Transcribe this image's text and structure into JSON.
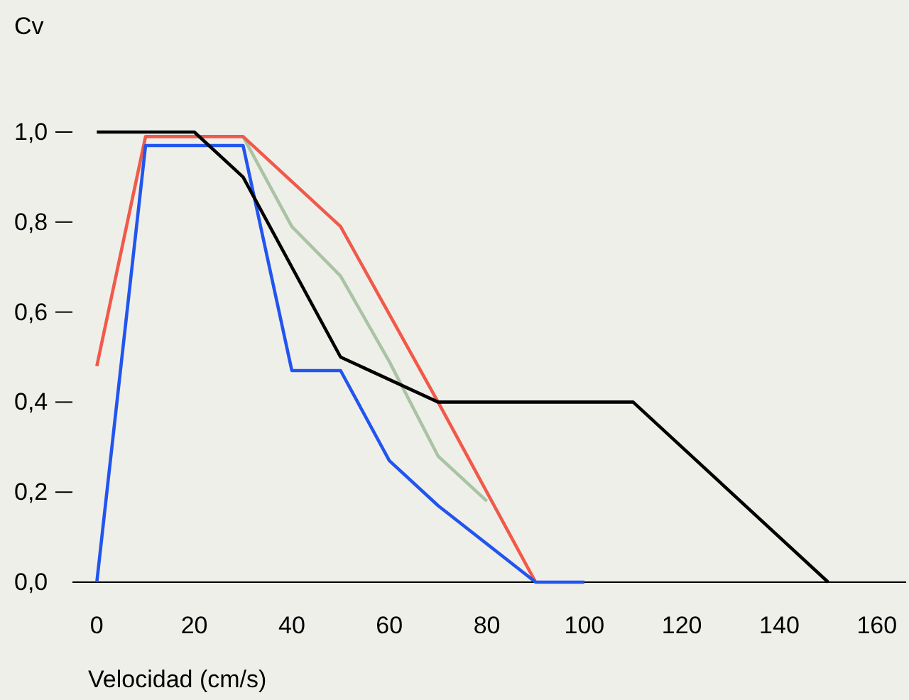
{
  "chart_data": {
    "type": "line",
    "ylabel": "Cv",
    "xlabel": "Velocidad (cm/s)",
    "xlim": [
      -5,
      166
    ],
    "xticks": [
      0,
      20,
      40,
      60,
      80,
      100,
      120,
      140,
      160
    ],
    "ylim": [
      0,
      1.0
    ],
    "yticks": [
      {
        "value": 0,
        "label": "0,0"
      },
      {
        "value": 0.2,
        "label": "0,2"
      },
      {
        "value": 0.4,
        "label": "0,4"
      },
      {
        "value": 0.6,
        "label": "0,6"
      },
      {
        "value": 0.8,
        "label": "0,8"
      },
      {
        "value": 1.0,
        "label": "1,0"
      }
    ],
    "marker": "none",
    "line_style": "solid",
    "series": [
      {
        "color": "#a9c4a4",
        "x": [
          30,
          40,
          50,
          60,
          70,
          80
        ],
        "values": [
          0.99,
          0.79,
          0.68,
          0.49,
          0.28,
          0.18
        ]
      },
      {
        "color": "#f05a4a",
        "x": [
          0,
          10,
          30,
          50,
          70,
          90
        ],
        "values": [
          0.48,
          0.99,
          0.99,
          0.79,
          0.4,
          0
        ]
      },
      {
        "color": "#2255ee",
        "x": [
          0,
          10,
          30,
          40,
          50,
          60,
          70,
          90,
          100
        ],
        "values": [
          0,
          0.97,
          0.97,
          0.47,
          0.47,
          0.27,
          0.17,
          0,
          0
        ]
      },
      {
        "color": "#000000",
        "x": [
          0,
          20,
          30,
          50,
          70,
          110,
          150
        ],
        "values": [
          1.0,
          1.0,
          0.9,
          0.5,
          0.4,
          0.4,
          0
        ]
      }
    ]
  }
}
